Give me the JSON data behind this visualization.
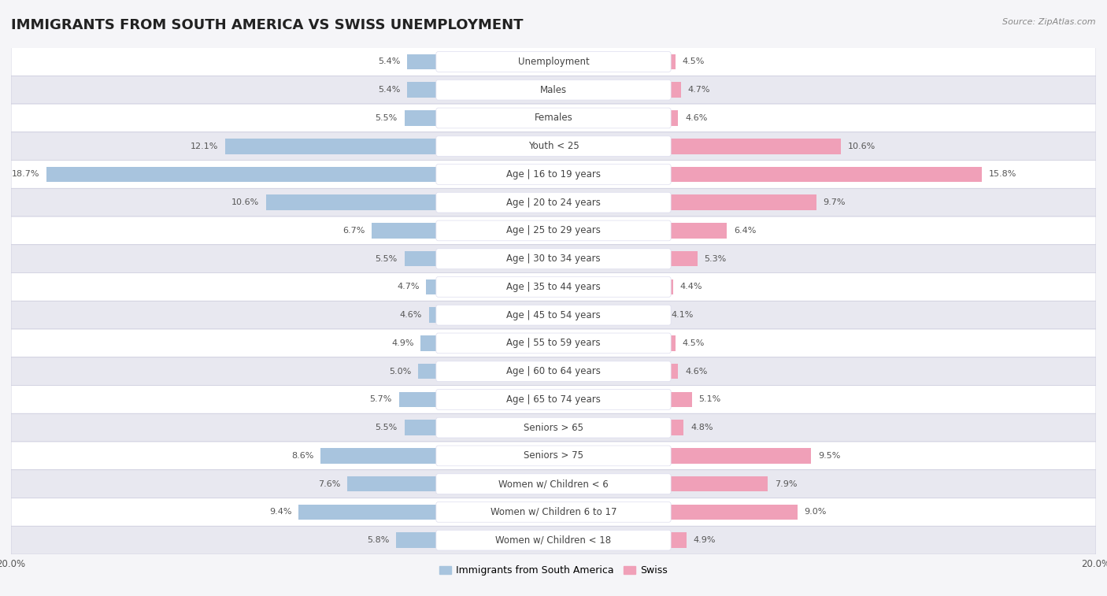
{
  "title": "IMMIGRANTS FROM SOUTH AMERICA VS SWISS UNEMPLOYMENT",
  "source": "Source: ZipAtlas.com",
  "categories": [
    "Unemployment",
    "Males",
    "Females",
    "Youth < 25",
    "Age | 16 to 19 years",
    "Age | 20 to 24 years",
    "Age | 25 to 29 years",
    "Age | 30 to 34 years",
    "Age | 35 to 44 years",
    "Age | 45 to 54 years",
    "Age | 55 to 59 years",
    "Age | 60 to 64 years",
    "Age | 65 to 74 years",
    "Seniors > 65",
    "Seniors > 75",
    "Women w/ Children < 6",
    "Women w/ Children 6 to 17",
    "Women w/ Children < 18"
  ],
  "left_values": [
    5.4,
    5.4,
    5.5,
    12.1,
    18.7,
    10.6,
    6.7,
    5.5,
    4.7,
    4.6,
    4.9,
    5.0,
    5.7,
    5.5,
    8.6,
    7.6,
    9.4,
    5.8
  ],
  "right_values": [
    4.5,
    4.7,
    4.6,
    10.6,
    15.8,
    9.7,
    6.4,
    5.3,
    4.4,
    4.1,
    4.5,
    4.6,
    5.1,
    4.8,
    9.5,
    7.9,
    9.0,
    4.9
  ],
  "left_color": "#a8c4de",
  "right_color": "#f0a0b8",
  "left_label": "Immigrants from South America",
  "right_label": "Swiss",
  "xlim": 20.0,
  "bg_light": "#ededf4",
  "bg_dark": "#e0e0ea",
  "row_colors": [
    "#ffffff",
    "#ededf4"
  ],
  "bar_height": 0.55,
  "title_fontsize": 13,
  "label_fontsize": 8.5,
  "value_fontsize": 8,
  "source_fontsize": 8,
  "axis_label_fontsize": 8.5
}
